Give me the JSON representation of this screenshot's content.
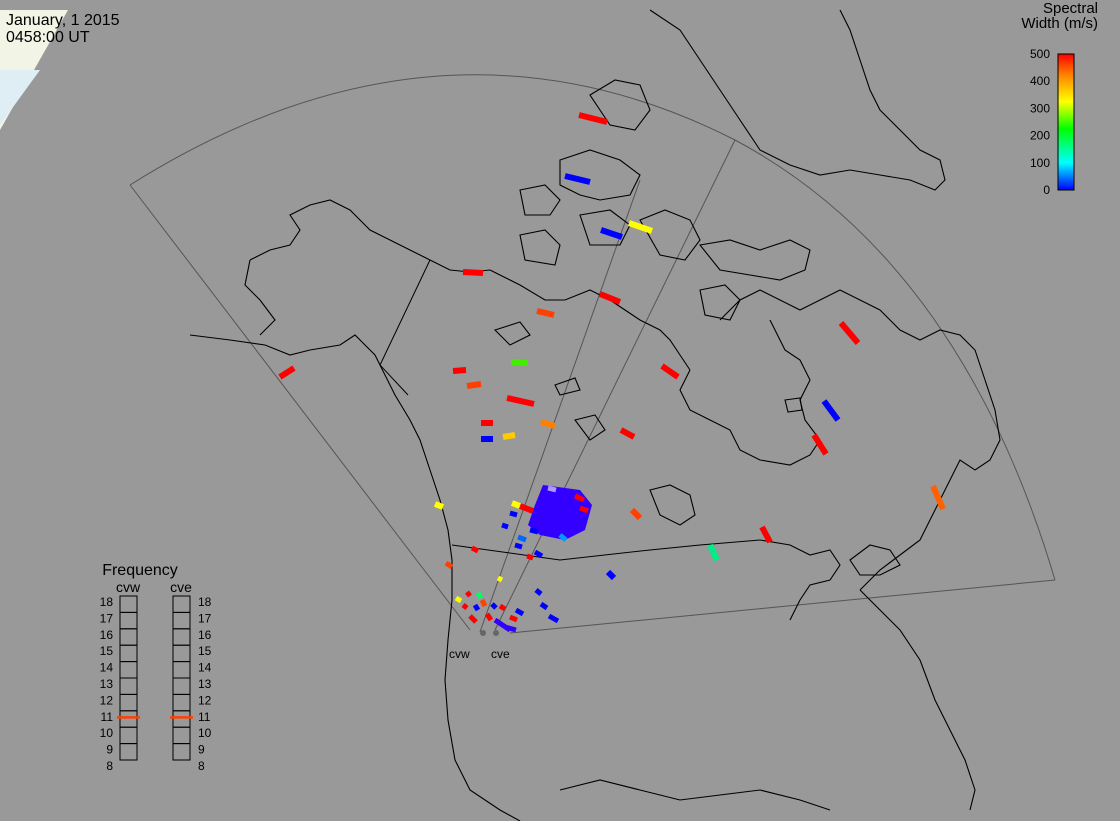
{
  "header": {
    "date": "January, 1 2015",
    "time": "0458:00 UT"
  },
  "colorbar": {
    "title_line1": "Spectral",
    "title_line2": "Width (m/s)",
    "ticks": [
      "500",
      "400",
      "300",
      "200",
      "100",
      "0"
    ],
    "range": [
      0,
      500
    ],
    "colors": [
      "#0000ff",
      "#00ffff",
      "#00ff00",
      "#ffff00",
      "#ff8000",
      "#ff0000"
    ]
  },
  "frequency_panel": {
    "title": "Frequency",
    "columns": [
      {
        "label": "cvw",
        "value": 10.6
      },
      {
        "label": "cve",
        "value": 10.6
      }
    ],
    "scale": [
      "18",
      "17",
      "16",
      "15",
      "14",
      "13",
      "12",
      "11",
      "10",
      "9",
      "8"
    ],
    "marker_color": "#ff4000"
  },
  "radars": {
    "west": "cvw",
    "east": "cve"
  },
  "colors": {
    "background": "#999999",
    "land_fill": "#999999",
    "coast": "#000000",
    "fov": "#555555"
  }
}
